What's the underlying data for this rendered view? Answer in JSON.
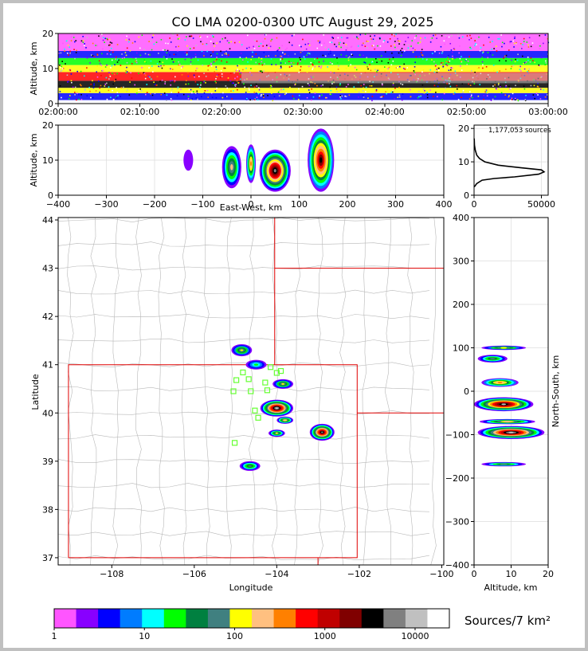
{
  "chart_data": [
    {
      "type": "heatmap",
      "id": "time-altitude",
      "title": "CO LMA 0200-0300 UTC August 29, 2025",
      "ylabel": "Altitude, km",
      "xlabel": "",
      "ylim": [
        0,
        20
      ],
      "yticks": [
        0,
        10,
        20
      ],
      "xtick_labels": [
        "02:00:00",
        "02:10:00",
        "02:20:00",
        "02:30:00",
        "02:40:00",
        "02:50:00",
        "03:00:00"
      ],
      "x_range_minutes": [
        0,
        60
      ],
      "bands": [
        {
          "low": 1,
          "high": 3,
          "color": "#0000ff"
        },
        {
          "low": 3,
          "high": 4.5,
          "color": "#ffff00"
        },
        {
          "low": 4.5,
          "high": 6.5,
          "color": "#000000"
        },
        {
          "low": 6.5,
          "high": 9,
          "color": "#ff0000"
        },
        {
          "low": 9,
          "high": 11,
          "color": "#ffff00"
        },
        {
          "low": 11,
          "high": 13,
          "color": "#00ff00"
        },
        {
          "low": 13,
          "high": 15,
          "color": "#0000ff"
        },
        {
          "low": 15,
          "high": 20,
          "color": "#ff55ff"
        }
      ]
    },
    {
      "type": "heatmap",
      "id": "east-west-altitude",
      "xlabel": "East-West, km",
      "ylabel": "Altitude, km",
      "xlim": [
        -400,
        400
      ],
      "ylim": [
        0,
        20
      ],
      "xticks": [
        -400,
        -300,
        -200,
        -100,
        0,
        100,
        200,
        300,
        400
      ],
      "yticks": [
        0,
        10,
        20
      ],
      "cells": [
        {
          "x": -40,
          "y": 8,
          "intensity": 2.4,
          "w": 40,
          "h": 12
        },
        {
          "x": 0,
          "y": 9,
          "intensity": 2.8,
          "w": 20,
          "h": 11
        },
        {
          "x": 50,
          "y": 7,
          "intensity": 4.2,
          "w": 65,
          "h": 12
        },
        {
          "x": 145,
          "y": 10,
          "intensity": 3.8,
          "w": 55,
          "h": 18
        },
        {
          "x": -130,
          "y": 10,
          "intensity": 0.4,
          "w": 20,
          "h": 6
        }
      ]
    },
    {
      "type": "line",
      "id": "altitude-histogram",
      "annotation": "1,177,053 sources",
      "xlim": [
        0,
        55000
      ],
      "ylim": [
        0,
        21
      ],
      "xticks": [
        0,
        50000
      ],
      "yticks": [
        0,
        10,
        20
      ],
      "x": [
        200,
        2000,
        6000,
        15000,
        30000,
        48000,
        52000,
        50000,
        35000,
        18000,
        8000,
        4000,
        2000,
        900,
        300,
        100
      ],
      "y": [
        2.5,
        3.5,
        4.5,
        5.0,
        5.5,
        6.3,
        7.0,
        7.6,
        8.2,
        9.0,
        10.0,
        11.0,
        12.0,
        13.5,
        15.0,
        17.0
      ]
    },
    {
      "type": "heatmap",
      "id": "plan-view",
      "xlabel": "Longitude",
      "ylabel": "Latitude",
      "xlim": [
        -109.3,
        -99.95
      ],
      "ylim": [
        36.85,
        44.05
      ],
      "xticks": [
        -108,
        -106,
        -104,
        -102,
        -100
      ],
      "yticks": [
        37,
        38,
        39,
        40,
        41,
        42,
        43,
        44
      ],
      "cells": [
        {
          "x": -104.0,
          "y": 40.1,
          "intensity": 4.4,
          "w": 0.8,
          "h": 0.35
        },
        {
          "x": -102.9,
          "y": 39.6,
          "intensity": 4.1,
          "w": 0.6,
          "h": 0.35
        },
        {
          "x": -103.8,
          "y": 39.85,
          "intensity": 2.6,
          "w": 0.4,
          "h": 0.15
        },
        {
          "x": -104.0,
          "y": 39.58,
          "intensity": 2.3,
          "w": 0.4,
          "h": 0.15
        },
        {
          "x": -104.85,
          "y": 41.3,
          "intensity": 2.2,
          "w": 0.5,
          "h": 0.25
        },
        {
          "x": -104.5,
          "y": 41.0,
          "intensity": 1.5,
          "w": 0.5,
          "h": 0.2
        },
        {
          "x": -103.85,
          "y": 40.6,
          "intensity": 2.2,
          "w": 0.5,
          "h": 0.2
        },
        {
          "x": -104.65,
          "y": 38.9,
          "intensity": 2.0,
          "w": 0.5,
          "h": 0.2
        }
      ],
      "stations": [
        {
          "lon": -104.15,
          "lat": 40.95
        },
        {
          "lon": -104.0,
          "lat": 40.83
        },
        {
          "lon": -103.9,
          "lat": 40.87
        },
        {
          "lon": -104.82,
          "lat": 40.84
        },
        {
          "lon": -104.98,
          "lat": 40.68
        },
        {
          "lon": -104.68,
          "lat": 40.7
        },
        {
          "lon": -104.28,
          "lat": 40.63
        },
        {
          "lon": -104.23,
          "lat": 40.47
        },
        {
          "lon": -104.63,
          "lat": 40.45
        },
        {
          "lon": -105.05,
          "lat": 40.45
        },
        {
          "lon": -104.53,
          "lat": 40.05
        },
        {
          "lon": -104.45,
          "lat": 39.9
        },
        {
          "lon": -105.02,
          "lat": 39.38
        }
      ]
    },
    {
      "type": "heatmap",
      "id": "altitude-north-south",
      "xlabel": "Altitude, km",
      "ylabel": "North-South, km",
      "xlim": [
        0,
        20
      ],
      "ylim": [
        -400,
        400
      ],
      "xticks": [
        0,
        10,
        20
      ],
      "yticks": [
        -400,
        -300,
        -200,
        -100,
        0,
        100,
        200,
        300,
        400
      ],
      "cells": [
        {
          "x": 8,
          "y": 100,
          "intensity": 2.2,
          "w": 12,
          "h": 10
        },
        {
          "x": 5,
          "y": 75,
          "intensity": 2.0,
          "w": 8,
          "h": 18
        },
        {
          "x": 7,
          "y": 20,
          "intensity": 2.8,
          "w": 10,
          "h": 20
        },
        {
          "x": 8,
          "y": -30,
          "intensity": 4.3,
          "w": 16,
          "h": 32
        },
        {
          "x": 9,
          "y": -70,
          "intensity": 2.6,
          "w": 15,
          "h": 12
        },
        {
          "x": 10,
          "y": -95,
          "intensity": 4.4,
          "w": 18,
          "h": 30
        },
        {
          "x": 8,
          "y": -168,
          "intensity": 2.0,
          "w": 12,
          "h": 10
        }
      ]
    }
  ],
  "colorbar": {
    "label": "Sources/7 km²",
    "tick_labels": [
      "1",
      "10",
      "100",
      "1000",
      "10000"
    ],
    "colors": [
      "#ff55ff",
      "#8800ff",
      "#0000ff",
      "#007cff",
      "#00ffff",
      "#00ff00",
      "#008040",
      "#408080",
      "#ffff00",
      "#ffc080",
      "#ff8000",
      "#ff0000",
      "#c00000",
      "#800000",
      "#000000",
      "#808080",
      "#c0c0c0",
      "#ffffff"
    ]
  }
}
